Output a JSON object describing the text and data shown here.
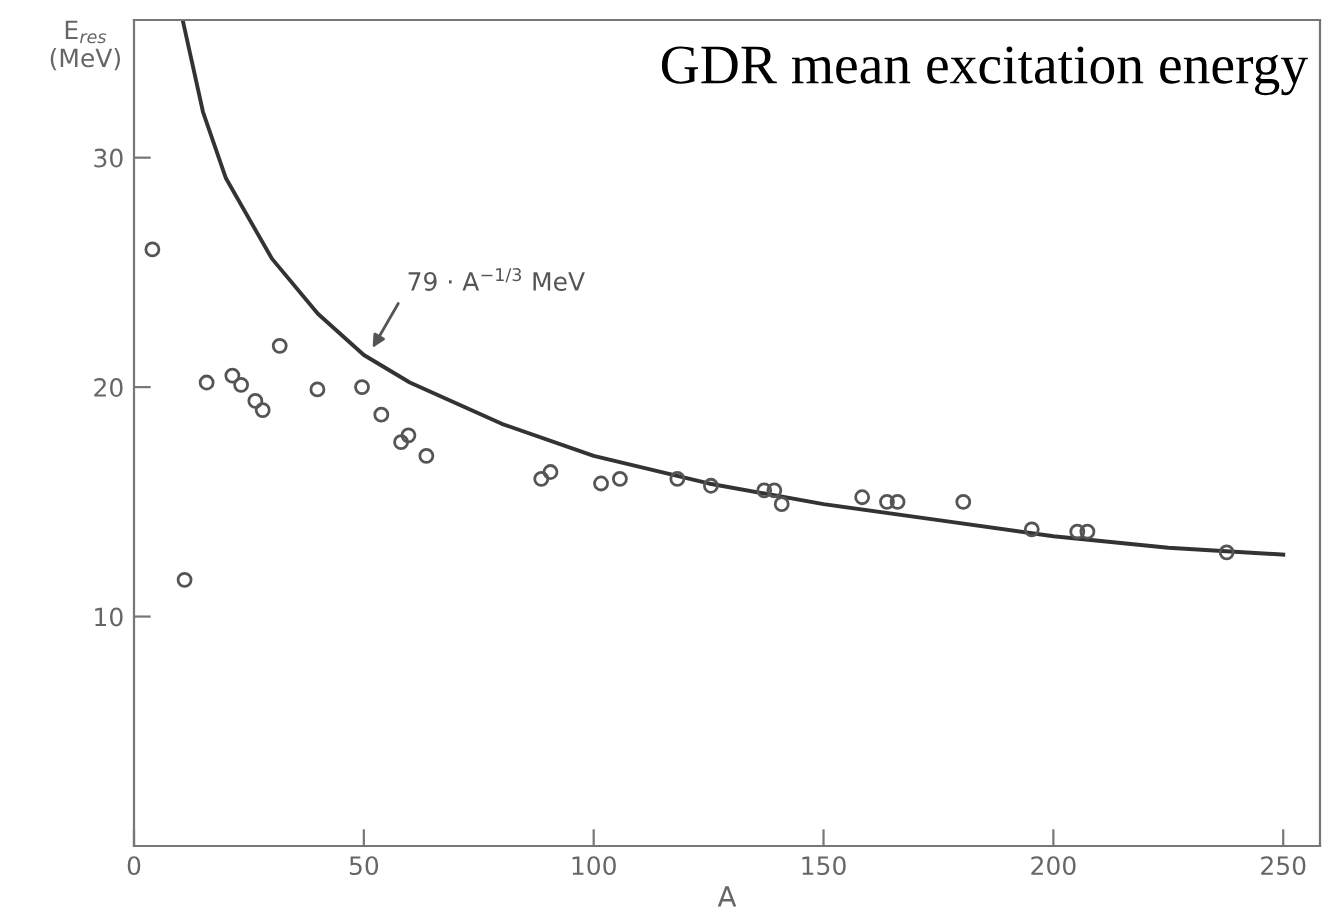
{
  "chart_data": {
    "type": "scatter",
    "title": "GDR mean excitation energy",
    "xlabel": "A",
    "ylabel": "E$_{res}$\n(MeV)",
    "xlim": [
      0,
      258
    ],
    "ylim": [
      0,
      36
    ],
    "xticks": [
      0,
      50,
      100,
      150,
      200,
      250
    ],
    "yticks": [
      10,
      20,
      30
    ],
    "grid": false,
    "legend": false,
    "marker": "circle",
    "series": [
      {
        "color": "#555555",
        "x": [
          4.0,
          11.0,
          15.8,
          21.4,
          23.3,
          26.4,
          28.0,
          31.7,
          39.9,
          49.6,
          53.8,
          58.1,
          59.7,
          63.6,
          88.6,
          90.6,
          101.6,
          105.7,
          118.2,
          125.5,
          137.1,
          139.3,
          140.9,
          158.4,
          163.8,
          166.1,
          180.4,
          195.3,
          205.2,
          207.4,
          237.7
        ],
        "values": [
          26.0,
          11.6,
          20.2,
          20.5,
          20.1,
          19.4,
          19.0,
          21.8,
          19.9,
          20.0,
          18.8,
          17.6,
          17.9,
          17.0,
          16.0,
          16.3,
          15.8,
          16.0,
          16.0,
          15.7,
          15.5,
          15.5,
          14.9,
          15.2,
          15.0,
          15.0,
          15.0,
          13.8,
          13.7,
          13.7,
          12.8
        ]
      },
      {
        "type": "line",
        "color": "#333333",
        "line_style": "solid",
        "marker": "none",
        "x": [
          10.7,
          15,
          20,
          30,
          40,
          50,
          60,
          80,
          100,
          125,
          150,
          175,
          200,
          225,
          250
        ],
        "values": [
          35.9,
          32.0,
          29.1,
          25.6,
          23.2,
          21.4,
          20.2,
          18.4,
          17.0,
          15.8,
          14.9,
          14.2,
          13.5,
          13.0,
          12.7
        ]
      }
    ],
    "annotations": [
      {
        "text": "79 · A$^{−1/3}$ MeV",
        "x": 51.3,
        "y": 21.5
      }
    ]
  }
}
